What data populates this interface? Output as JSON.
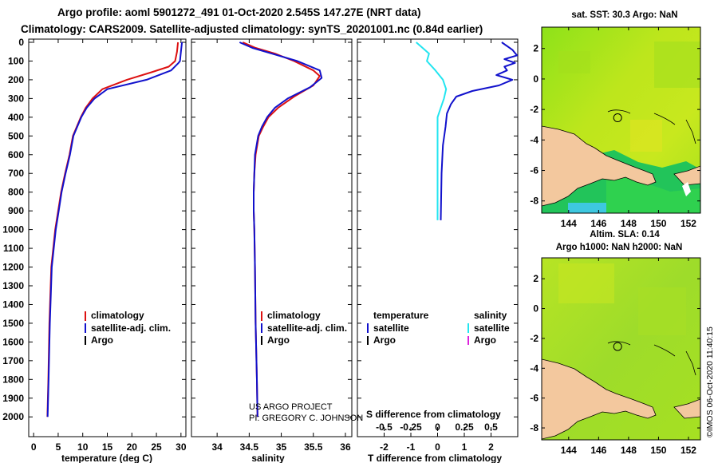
{
  "header": {
    "line1": "Argo profile: aoml 5901272_491 01-Oct-2020 2.545S 147.27E (NRT data)",
    "line2": "Climatology: CARS2009. Satellite-adjusted climatology: synTS_20201001.nc (0.84d earlier)"
  },
  "colors": {
    "climatology": "#dd1111",
    "satellite": "#1111cc",
    "argo": "#000000",
    "sat_salinity": "#22e5f0",
    "argo_salinity": "#dd22dd",
    "land": "#f3c89e"
  },
  "depth_axis": {
    "ticks": [
      0,
      100,
      200,
      300,
      400,
      500,
      600,
      700,
      800,
      900,
      1000,
      1100,
      1200,
      1300,
      1400,
      1500,
      1600,
      1700,
      1800,
      1900,
      2000
    ],
    "ylim": [
      0,
      2080
    ]
  },
  "chart_data": [
    {
      "id": "temperature",
      "type": "line",
      "xlabel": "temperature (deg C)",
      "xlim": [
        -1,
        31
      ],
      "xticks": [
        0,
        5,
        10,
        15,
        20,
        25,
        30
      ],
      "ylim": [
        2080,
        0
      ],
      "series": [
        {
          "name": "climatology",
          "color": "#dd1111",
          "x": [
            29.4,
            29.2,
            28.8,
            27.5,
            24,
            19,
            14,
            12,
            10.6,
            9.6,
            8.8,
            8.0,
            7.3,
            6.4,
            5.6,
            5.0,
            4.4,
            3.6,
            3.2,
            3.0,
            2.8
          ],
          "y": [
            0,
            50,
            100,
            130,
            160,
            200,
            250,
            300,
            350,
            400,
            450,
            500,
            600,
            700,
            800,
            900,
            1000,
            1200,
            1500,
            1800,
            2000
          ]
        },
        {
          "name": "satellite-adj. clim.",
          "color": "#1111cc",
          "x": [
            30.2,
            30.0,
            29.8,
            29.5,
            28,
            23,
            15,
            12.4,
            10.8,
            9.7,
            8.9,
            8.1,
            7.4,
            6.5,
            5.7,
            5.1,
            4.5,
            3.7,
            3.3,
            3.05,
            2.85
          ],
          "y": [
            0,
            50,
            100,
            110,
            150,
            200,
            250,
            300,
            350,
            400,
            450,
            500,
            600,
            700,
            800,
            900,
            1000,
            1200,
            1500,
            1800,
            2000
          ]
        }
      ],
      "legend": [
        "climatology",
        "satellite-adj. clim.",
        "Argo"
      ]
    },
    {
      "id": "salinity",
      "type": "line",
      "xlabel": "salinity",
      "xlim": [
        33.6,
        36.1
      ],
      "xticks": [
        34,
        34.5,
        35,
        35.5,
        36
      ],
      "ylim": [
        2080,
        0
      ],
      "series": [
        {
          "name": "climatology",
          "color": "#dd1111",
          "x": [
            34.4,
            34.6,
            34.9,
            35.2,
            35.5,
            35.6,
            35.5,
            35.2,
            34.95,
            34.8,
            34.72,
            34.65,
            34.6,
            34.58,
            34.57,
            34.57,
            34.58,
            34.59,
            34.6,
            34.62,
            34.63
          ],
          "y": [
            0,
            30,
            60,
            100,
            150,
            180,
            230,
            290,
            350,
            400,
            450,
            500,
            600,
            700,
            800,
            900,
            1000,
            1200,
            1500,
            1800,
            2000
          ]
        },
        {
          "name": "satellite-adj. clim.",
          "color": "#1111cc",
          "x": [
            34.35,
            34.55,
            34.85,
            35.25,
            35.6,
            35.63,
            35.45,
            35.1,
            34.9,
            34.78,
            34.7,
            34.64,
            34.59,
            34.58,
            34.57,
            34.57,
            34.58,
            34.59,
            34.6,
            34.62,
            34.63
          ],
          "y": [
            0,
            30,
            60,
            100,
            150,
            190,
            240,
            300,
            350,
            400,
            450,
            500,
            600,
            700,
            800,
            900,
            1000,
            1200,
            1500,
            1800,
            2000
          ]
        }
      ],
      "legend": [
        "climatology",
        "satellite-adj. clim.",
        "Argo"
      ],
      "annotations": [
        "US ARGO PROJECT",
        "PI: GREGORY C. JOHNSON"
      ]
    },
    {
      "id": "difference",
      "type": "line",
      "xlabel": "T difference from climatology",
      "xlim": [
        -3,
        3
      ],
      "xticks": [
        -2,
        -1,
        0,
        1,
        2
      ],
      "top_label": "S difference from climatology",
      "top_xlim": [
        -0.75,
        0.75
      ],
      "top_xticks": [
        -0.5,
        -0.25,
        0,
        0.25,
        0.5
      ],
      "top_tick_labels": [
        "-0.5",
        "-0.25",
        "0",
        "0.25",
        "0.5"
      ],
      "ylim": [
        2080,
        0
      ],
      "series": [
        {
          "name": "temperature satellite",
          "color": "#1111cc",
          "axis": "T",
          "x": [
            2.4,
            2.8,
            3.0,
            2.5,
            2.9,
            2.5,
            2.6,
            2.2,
            2.8,
            2.3,
            1.3,
            0.7,
            0.5,
            0.35,
            0.3,
            0.2,
            0.15,
            0.12
          ],
          "y": [
            0,
            40,
            70,
            90,
            110,
            130,
            150,
            175,
            200,
            230,
            260,
            290,
            330,
            380,
            450,
            550,
            700,
            950
          ]
        },
        {
          "name": "salinity satellite",
          "color": "#22e5f0",
          "axis": "S",
          "x": [
            -0.2,
            -0.14,
            -0.08,
            -0.1,
            -0.02,
            0.05,
            0.08,
            0.06,
            0.03,
            0.0,
            0.0,
            0.0,
            0.0,
            0.0
          ],
          "y": [
            0,
            30,
            60,
            100,
            150,
            200,
            250,
            300,
            350,
            400,
            500,
            600,
            800,
            950
          ]
        }
      ],
      "legend": {
        "temperature": [
          "satellite",
          "Argo"
        ],
        "salinity": [
          "satellite",
          "Argo"
        ]
      }
    }
  ],
  "maps": {
    "sst": {
      "title": "sat. SST: 30.3 Argo: NaN"
    },
    "sla": {
      "title1": "Altim. SLA: 0.14",
      "title2": "Argo h1000: NaN h2000: NaN"
    },
    "lat_ticks": [
      2,
      0,
      -2,
      -4,
      -6,
      -8
    ],
    "lon_ticks": [
      144,
      146,
      148,
      150,
      152
    ],
    "lon_range": [
      142.2,
      152.8
    ],
    "lat_range": [
      -8.8,
      3.4
    ],
    "argo_position": {
      "lon": 147.27,
      "lat": -2.545
    }
  },
  "footer": {
    "stamp": "©IMOS 06-Oct-2020 11:40:15"
  }
}
